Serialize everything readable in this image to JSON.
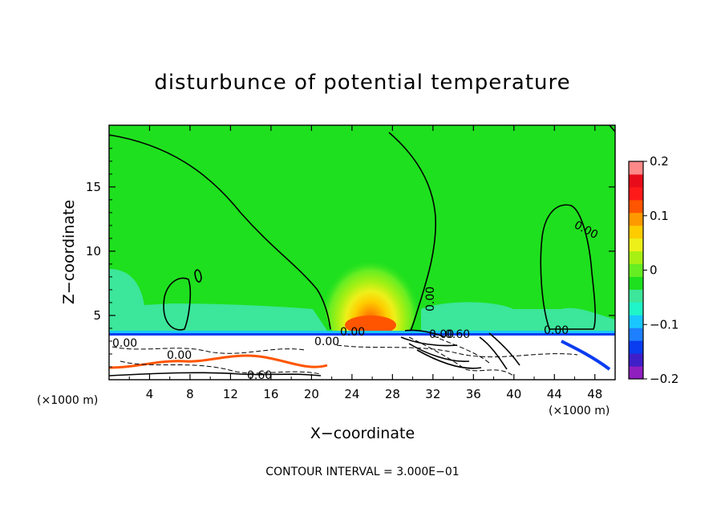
{
  "chart_data": {
    "type": "heatmap",
    "title": "disturbunce of potential temperature",
    "xlabel": "X−coordinate",
    "ylabel": "Z−coordinate",
    "x_unit": "(×1000 m)",
    "y_unit": "(×1000 m)",
    "xlim": [
      0,
      50
    ],
    "ylim": [
      0,
      19.8
    ],
    "x_ticks": [
      4,
      8,
      12,
      16,
      20,
      24,
      28,
      32,
      36,
      40,
      44,
      48
    ],
    "y_ticks": [
      5,
      10,
      15
    ],
    "colorbar": {
      "range": [
        -0.2,
        0.2
      ],
      "tick_values": [
        0.2,
        0.1,
        0,
        -0.1,
        -0.2
      ],
      "tick_labels": [
        "0.2",
        "0.1",
        "0",
        "−0.1",
        "−0.2"
      ],
      "colors": [
        "#8f1fbf",
        "#3f1fc8",
        "#0a3cf0",
        "#1e7fff",
        "#19c7ff",
        "#1ff5c8",
        "#3ce69a",
        "#1ee01e",
        "#66ee22",
        "#a8f013",
        "#eef01a",
        "#ffcc00",
        "#ff9900",
        "#ff5500",
        "#ff1a1a",
        "#e80c1a",
        "#ff8888"
      ]
    },
    "features": [
      {
        "name": "background",
        "value": 0.0
      },
      {
        "name": "warm plume",
        "x": 26,
        "z": 4.2,
        "value": 0.14
      },
      {
        "name": "cool layer near surface",
        "x_range": [
          0,
          50
        ],
        "z": 3.6,
        "value": -0.15
      },
      {
        "name": "cool region left",
        "x_range": [
          0,
          22
        ],
        "z_range": [
          3.6,
          9
        ],
        "value": -0.02
      },
      {
        "name": "cool region right",
        "x_range": [
          29,
          48
        ],
        "z_range": [
          3.6,
          6
        ],
        "value": -0.02
      }
    ],
    "contour_labels": [
      "0.00",
      "0.00",
      "0.00",
      "0.00",
      "0.00",
      "0.00",
      "0.00",
      "0.60",
      "0.00",
      "0.60"
    ],
    "contour_interval_text": "CONTOUR INTERVAL = 3.000E−01"
  }
}
